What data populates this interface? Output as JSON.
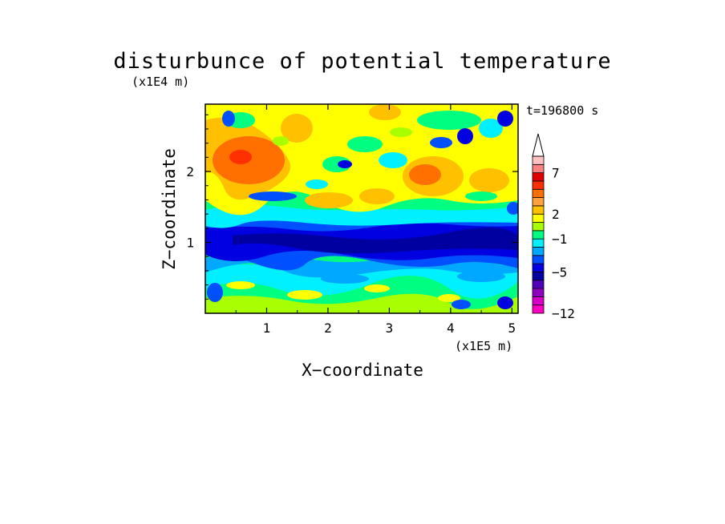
{
  "chart_data": {
    "type": "heatmap",
    "title": "disturbunce of potential temperature",
    "xlabel": "X−coordinate",
    "ylabel": "Z−coordinate",
    "x_unit": "(x1E5 m)",
    "y_unit": "(x1E4 m)",
    "time_label": "t=196800 s",
    "xlim": [
      0,
      5.1
    ],
    "ylim": [
      0,
      2.95
    ],
    "x_ticks": [
      "1",
      "2",
      "3",
      "4",
      "5"
    ],
    "y_ticks": [
      "1",
      "2"
    ],
    "colorbar_ticks": [
      "7",
      "2",
      "−1",
      "−5",
      "−12"
    ],
    "colorbar_levels": [
      -12,
      -10,
      -8,
      -7,
      -6,
      -5,
      -4,
      -3,
      -2,
      -1,
      0,
      1,
      2,
      3,
      4,
      5,
      6,
      7,
      8,
      9
    ],
    "colorbar_colors": [
      "#ff00c0",
      "#d800c8",
      "#9000c0",
      "#5000b8",
      "#0000a0",
      "#0000e0",
      "#0050ff",
      "#00a8ff",
      "#00f0ff",
      "#00ff80",
      "#a8ff00",
      "#ffff00",
      "#ffc000",
      "#ffa040",
      "#ff7000",
      "#ff3000",
      "#e00000",
      "#ff8080",
      "#ffc0c0"
    ],
    "field_bands": [
      {
        "z_range": [
          2.3,
          2.95
        ],
        "typical_value": 2,
        "desc_range": [
          -3,
          8
        ]
      },
      {
        "z_range": [
          1.6,
          2.3
        ],
        "typical_value": 2,
        "desc_range": [
          -5,
          6
        ]
      },
      {
        "z_range": [
          1.3,
          1.6
        ],
        "typical_value": -1,
        "desc_range": [
          -3,
          1
        ]
      },
      {
        "z_range": [
          0.7,
          1.3
        ],
        "typical_value": -5,
        "desc_range": [
          -7,
          -3
        ]
      },
      {
        "z_range": [
          0.0,
          0.7
        ],
        "typical_value": 0,
        "desc_range": [
          -5,
          4
        ]
      }
    ]
  }
}
